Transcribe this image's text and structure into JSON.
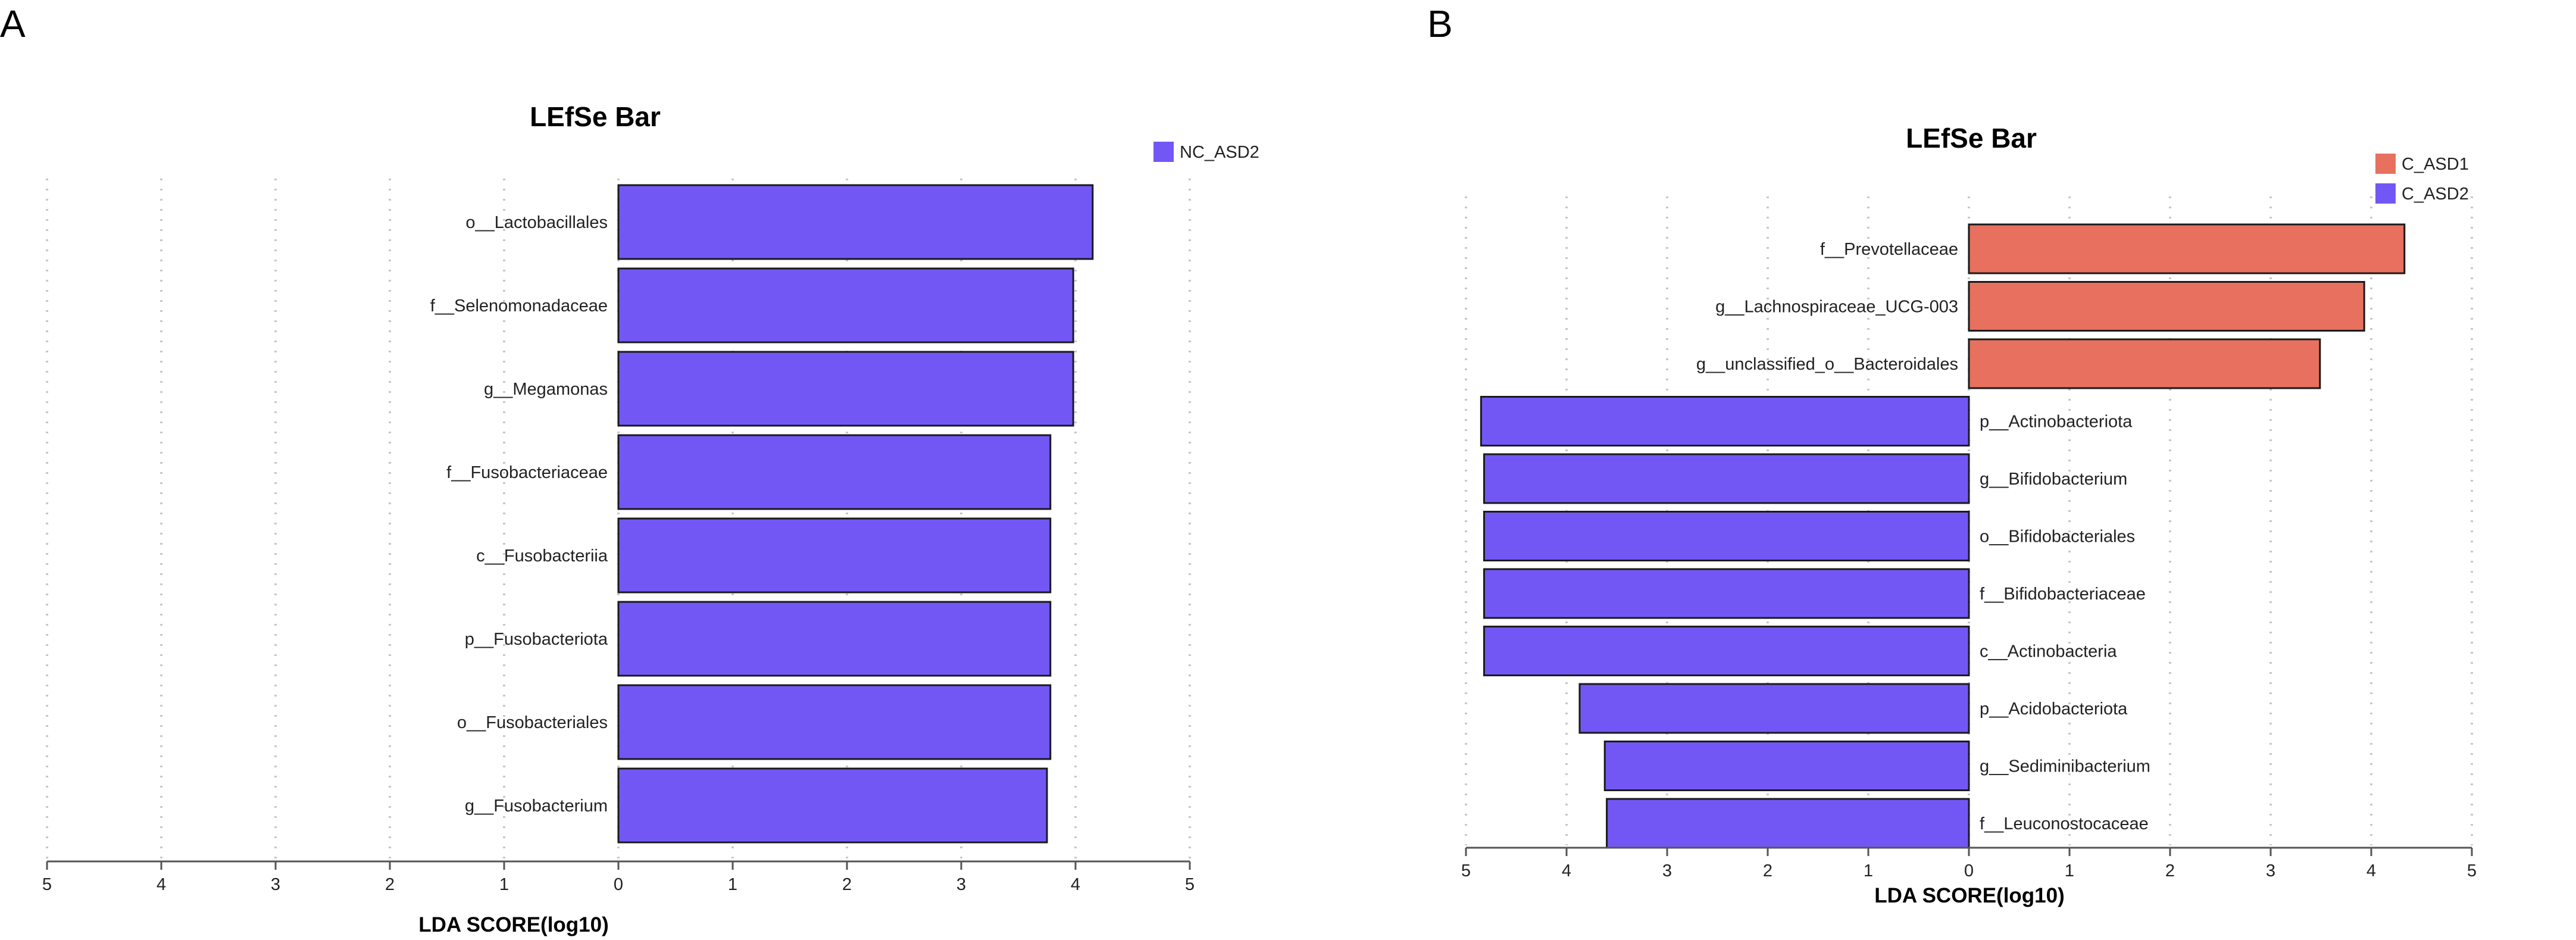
{
  "chart_data": [
    {
      "panel": "A",
      "type": "bar",
      "orientation": "horizontal",
      "title": "LEfSe Bar",
      "xlabel": "LDA SCORE(log10)",
      "ylabel": "",
      "xlim": [
        -5,
        5
      ],
      "x_ticks": [
        5,
        4,
        3,
        2,
        1,
        0,
        1,
        2,
        3,
        4,
        5
      ],
      "grid": true,
      "legend": "top-right",
      "legend_entries": [
        {
          "name": "NC_ASD2",
          "color": "#7357f5"
        }
      ],
      "categories": [
        "o__Lactobacillales",
        "f__Selenomonadaceae",
        "g__Megamonas",
        "f__Fusobacteriaceae",
        "c__Fusobacteriia",
        "p__Fusobacteriota",
        "o__Fusobacteriales",
        "g__Fusobacterium"
      ],
      "values": [
        4.15,
        3.98,
        3.98,
        3.78,
        3.78,
        3.78,
        3.78,
        3.75
      ],
      "groups": [
        "NC_ASD2",
        "NC_ASD2",
        "NC_ASD2",
        "NC_ASD2",
        "NC_ASD2",
        "NC_ASD2",
        "NC_ASD2",
        "NC_ASD2"
      ]
    },
    {
      "panel": "B",
      "type": "bar",
      "orientation": "horizontal",
      "title": "LEfSe Bar",
      "xlabel": "LDA SCORE(log10)",
      "ylabel": "",
      "xlim": [
        -5,
        5
      ],
      "x_ticks": [
        5,
        4,
        3,
        2,
        1,
        0,
        1,
        2,
        3,
        4,
        5
      ],
      "grid": true,
      "legend": "top-right",
      "legend_entries": [
        {
          "name": "C_ASD1",
          "color": "#e8705f"
        },
        {
          "name": "C_ASD2",
          "color": "#7357f5"
        }
      ],
      "categories": [
        "f__Prevotellaceae",
        "g__Lachnospiraceae_UCG-003",
        "g__unclassified_o__Bacteroidales",
        "p__Actinobacteriota",
        "g__Bifidobacterium",
        "o__Bifidobacteriales",
        "f__Bifidobacteriaceae",
        "c__Actinobacteria",
        "p__Acidobacteriota",
        "g__Sediminibacterium",
        "f__Leuconostocaceae"
      ],
      "values": [
        4.33,
        3.93,
        3.49,
        -4.85,
        -4.82,
        -4.82,
        -4.82,
        -4.82,
        -3.87,
        -3.62,
        -3.6
      ],
      "groups": [
        "C_ASD1",
        "C_ASD1",
        "C_ASD1",
        "C_ASD2",
        "C_ASD2",
        "C_ASD2",
        "C_ASD2",
        "C_ASD2",
        "C_ASD2",
        "C_ASD2",
        "C_ASD2"
      ]
    }
  ]
}
